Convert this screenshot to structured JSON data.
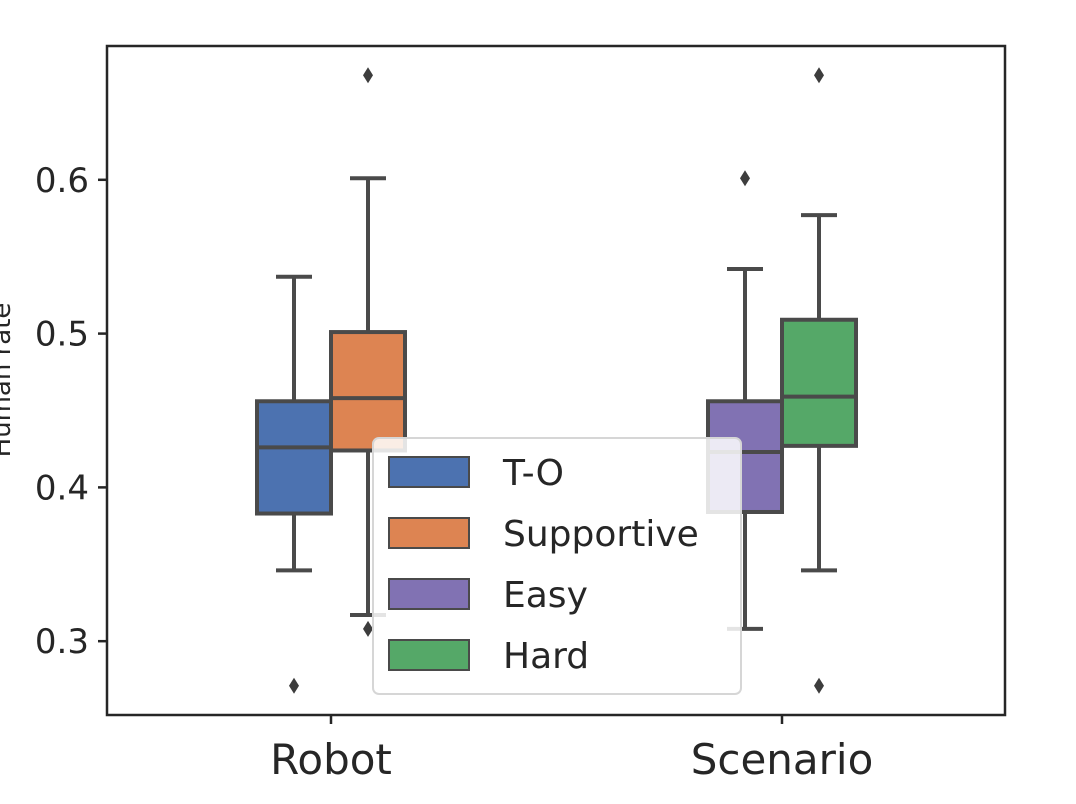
{
  "chart_data": {
    "type": "boxplot",
    "categories": [
      "Robot",
      "Scenario"
    ],
    "ylabel": "Human rate",
    "ylim": [
      0.252,
      0.687
    ],
    "yticks": [
      "0.3",
      "0.4",
      "0.5",
      "0.6"
    ],
    "grid": false,
    "legend": {
      "position": "lower-center",
      "entries": [
        {
          "label": "T-O",
          "color": "#4c72b0"
        },
        {
          "label": "Supportive",
          "color": "#dd8452"
        },
        {
          "label": "Easy",
          "color": "#8172b3"
        },
        {
          "label": "Hard",
          "color": "#55a868"
        }
      ]
    },
    "boxes": [
      {
        "name": "T-O",
        "category": "Robot",
        "offset": -1,
        "color": "#4c72b0",
        "whisker_low": 0.346,
        "q1": 0.383,
        "median": 0.426,
        "q3": 0.456,
        "whisker_high": 0.537,
        "outliers": [
          0.271
        ]
      },
      {
        "name": "Supportive",
        "category": "Robot",
        "offset": 1,
        "color": "#dd8452",
        "whisker_low": 0.317,
        "q1": 0.424,
        "median": 0.458,
        "q3": 0.501,
        "whisker_high": 0.601,
        "outliers": [
          0.308,
          0.668
        ]
      },
      {
        "name": "Easy",
        "category": "Scenario",
        "offset": -1,
        "color": "#8172b3",
        "whisker_low": 0.308,
        "q1": 0.384,
        "median": 0.423,
        "q3": 0.456,
        "whisker_high": 0.542,
        "outliers": [
          0.601
        ]
      },
      {
        "name": "Hard",
        "category": "Scenario",
        "offset": 1,
        "color": "#55a868",
        "whisker_low": 0.346,
        "q1": 0.427,
        "median": 0.459,
        "q3": 0.509,
        "whisker_high": 0.577,
        "outliers": [
          0.271,
          0.668
        ]
      }
    ]
  }
}
